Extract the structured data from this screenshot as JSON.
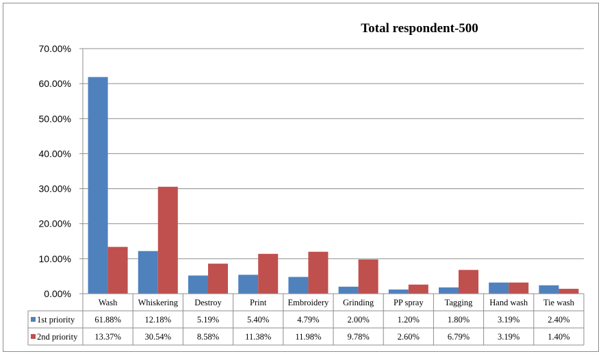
{
  "chart_data": {
    "type": "bar",
    "title": "Total respondent-500",
    "categories": [
      "Wash",
      "Whiskering",
      "Destroy",
      "Print",
      "Embroidery",
      "Grinding",
      "PP spray",
      "Tagging",
      "Hand wash",
      "Tie wash"
    ],
    "series": [
      {
        "name": "1st priority",
        "color": "#4f81bd",
        "values": [
          61.88,
          12.18,
          5.19,
          5.4,
          4.79,
          2.0,
          1.2,
          1.8,
          3.19,
          2.4
        ],
        "labels": [
          "61.88%",
          "12.18%",
          "5.19%",
          "5.40%",
          "4.79%",
          "2.00%",
          "1.20%",
          "1.80%",
          "3.19%",
          "2.40%"
        ]
      },
      {
        "name": "2nd priority",
        "color": "#c0504d",
        "values": [
          13.37,
          30.54,
          8.58,
          11.38,
          11.98,
          9.78,
          2.6,
          6.79,
          3.19,
          1.4
        ],
        "labels": [
          "13.37%",
          "30.54%",
          "8.58%",
          "11.38%",
          "11.98%",
          "9.78%",
          "2.60%",
          "6.79%",
          "3.19%",
          "1.40%"
        ]
      }
    ],
    "ylim": [
      0,
      70
    ],
    "yticks": [
      "0.00%",
      "10.00%",
      "20.00%",
      "30.00%",
      "40.00%",
      "50.00%",
      "60.00%",
      "70.00%"
    ],
    "grid": true,
    "legend": "data-table-below"
  }
}
